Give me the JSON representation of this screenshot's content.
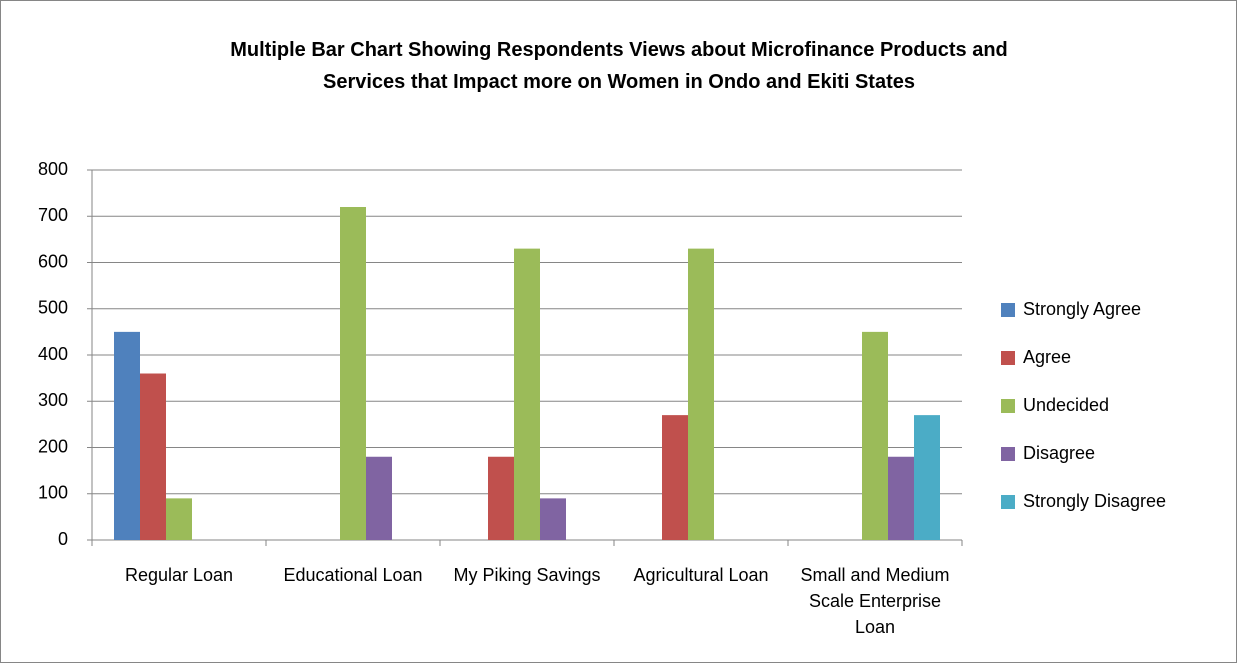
{
  "chart_data": {
    "type": "bar",
    "title": "Multiple Bar Chart Showing Respondents Views about Microfinance Products and Services that Impact more on Women in Ondo and Ekiti States",
    "categories": [
      "Regular Loan",
      "Educational Loan",
      "My Piking Savings",
      "Agricultural Loan",
      "Small and Medium Scale Enterprise Loan"
    ],
    "series": [
      {
        "name": "Strongly Agree",
        "color": "#4f81bd",
        "values": [
          450,
          0,
          0,
          0,
          0
        ]
      },
      {
        "name": "Agree",
        "color": "#c0504d",
        "values": [
          360,
          0,
          180,
          270,
          0
        ]
      },
      {
        "name": "Undecided",
        "color": "#9bbb59",
        "values": [
          90,
          720,
          630,
          630,
          450
        ]
      },
      {
        "name": "Disagree",
        "color": "#8064a2",
        "values": [
          0,
          180,
          90,
          0,
          180
        ]
      },
      {
        "name": "Strongly Disagree",
        "color": "#4bacc6",
        "values": [
          0,
          0,
          0,
          0,
          270
        ]
      }
    ],
    "ylim": [
      0,
      800
    ],
    "yticks": [
      0,
      100,
      200,
      300,
      400,
      500,
      600,
      700,
      800
    ],
    "grid": true,
    "legend": "right"
  }
}
